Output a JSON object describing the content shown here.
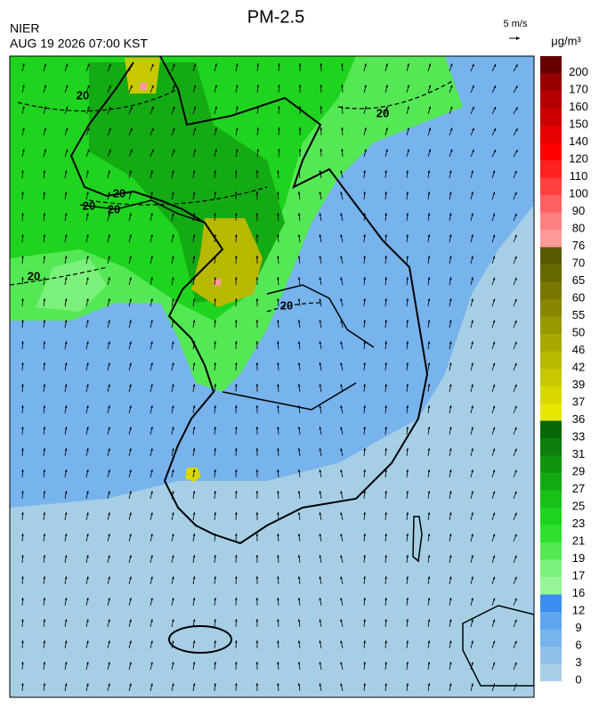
{
  "header": {
    "title": "PM-2.5",
    "agency": "NIER",
    "datetime": "AUG 19 2026 07:00 KST"
  },
  "legend": {
    "vector_scale": "5 m/s",
    "unit": "μg/m³"
  },
  "contour_labels": [
    "20",
    "20",
    "20",
    "20",
    "20",
    "20",
    "20"
  ],
  "colorbar": {
    "ticks": [
      0,
      3,
      6,
      9,
      12,
      16,
      17,
      19,
      21,
      23,
      25,
      27,
      29,
      31,
      33,
      36,
      37,
      39,
      42,
      46,
      50,
      55,
      60,
      65,
      70,
      76,
      80,
      90,
      100,
      110,
      120,
      140,
      150,
      160,
      170,
      200
    ],
    "colors": [
      "#a6cfe6",
      "#8fc1ea",
      "#77b3ec",
      "#5fa5ee",
      "#3b8ef0",
      "#96f596",
      "#7bf07b",
      "#55e855",
      "#2fe02f",
      "#1ed41e",
      "#18c018",
      "#14aa14",
      "#109410",
      "#0c7e0c",
      "#086808",
      "#e6e600",
      "#d8d800",
      "#c8c800",
      "#b8b800",
      "#a8a800",
      "#989800",
      "#888800",
      "#787800",
      "#686800",
      "#585800",
      "#ff9a9a",
      "#ff8080",
      "#ff6060",
      "#ff4040",
      "#ff2020",
      "#ff0000",
      "#e60000",
      "#cc0000",
      "#b30000",
      "#990000",
      "#660000"
    ]
  }
}
